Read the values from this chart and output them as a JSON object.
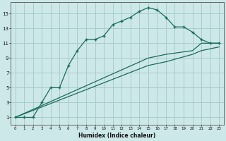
{
  "xlabel": "Humidex (Indice chaleur)",
  "bg_color": "#cce8e8",
  "grid_color": "#aacccc",
  "line_color": "#1a6b5a",
  "xlim": [
    -0.5,
    23.5
  ],
  "ylim": [
    0,
    16.5
  ],
  "xticks": [
    0,
    1,
    2,
    3,
    4,
    5,
    6,
    7,
    8,
    9,
    10,
    11,
    12,
    13,
    14,
    15,
    16,
    17,
    18,
    19,
    20,
    21,
    22,
    23
  ],
  "yticks": [
    1,
    3,
    5,
    7,
    9,
    11,
    13,
    15
  ],
  "line1_x": [
    0,
    1,
    2,
    3,
    4,
    5,
    6,
    7,
    8,
    9,
    10,
    11,
    12,
    13,
    14,
    15,
    16,
    17,
    18,
    19,
    20,
    21,
    22,
    23
  ],
  "line1_y": [
    1,
    1,
    1,
    3,
    5,
    5,
    8,
    10,
    11.5,
    11.5,
    12,
    13.5,
    14,
    14.5,
    15.3,
    15.8,
    15.5,
    14.5,
    13.2,
    13.2,
    12.5,
    11.5,
    11,
    11
  ],
  "line2_x": [
    0,
    15,
    17,
    20,
    21,
    23
  ],
  "line2_y": [
    1,
    9,
    9.5,
    10,
    11,
    11
  ],
  "line3_x": [
    0,
    15,
    17,
    20,
    21,
    23
  ],
  "line3_y": [
    1,
    8,
    8.5,
    9.5,
    10,
    10.5
  ]
}
